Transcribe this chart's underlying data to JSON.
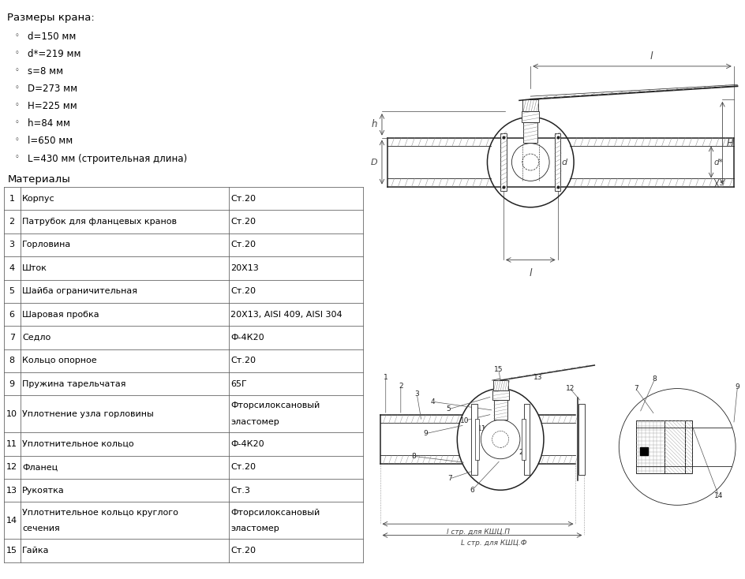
{
  "title_specs": "Размеры крана:",
  "specs": [
    "d=150 мм",
    "d*=219 мм",
    "s=8 мм",
    "D=273 мм",
    "H=225 мм",
    "h=84 мм",
    "l=650 мм",
    "L=430 мм (строительная длина)"
  ],
  "materials_title": "Материалы",
  "table_data": [
    [
      "1",
      "Корпус",
      "Ст.20"
    ],
    [
      "2",
      "Патрубок для фланцевых кранов",
      "Ст.20"
    ],
    [
      "3",
      "Горловина",
      "Ст.20"
    ],
    [
      "4",
      "Шток",
      "20Х13"
    ],
    [
      "5",
      "Шайба ограничительная",
      "Ст.20"
    ],
    [
      "6",
      "Шаровая пробка",
      "20Х13, AISI 409, AISI 304"
    ],
    [
      "7",
      "Седло",
      "Ф-4К20"
    ],
    [
      "8",
      "Кольцо опорное",
      "Ст.20"
    ],
    [
      "9",
      "Пружина тарельчатая",
      "65Г"
    ],
    [
      "10",
      "Уплотнение узла горловины",
      "Фторсилоксановый\nэластомер"
    ],
    [
      "11",
      "Уплотнительное кольцо",
      "Ф-4К20"
    ],
    [
      "12",
      "Фланец",
      "Ст.20"
    ],
    [
      "13",
      "Рукоятка",
      "Ст.3"
    ],
    [
      "14",
      "Уплотнительное кольцо круглого\nсечения",
      "Фторсилоксановый\nэластомер"
    ],
    [
      "15",
      "Гайка",
      "Ст.20"
    ]
  ],
  "bg_color": "#ffffff",
  "line_color": "#000000",
  "dim_color": "#444444",
  "gray": "#888888",
  "dark": "#222222",
  "table_line_color": "#666666",
  "font_size_specs": 8.5,
  "font_size_table": 8.0,
  "lw_main": 1.1,
  "lw_thin": 0.6,
  "lw_dim": 0.6
}
